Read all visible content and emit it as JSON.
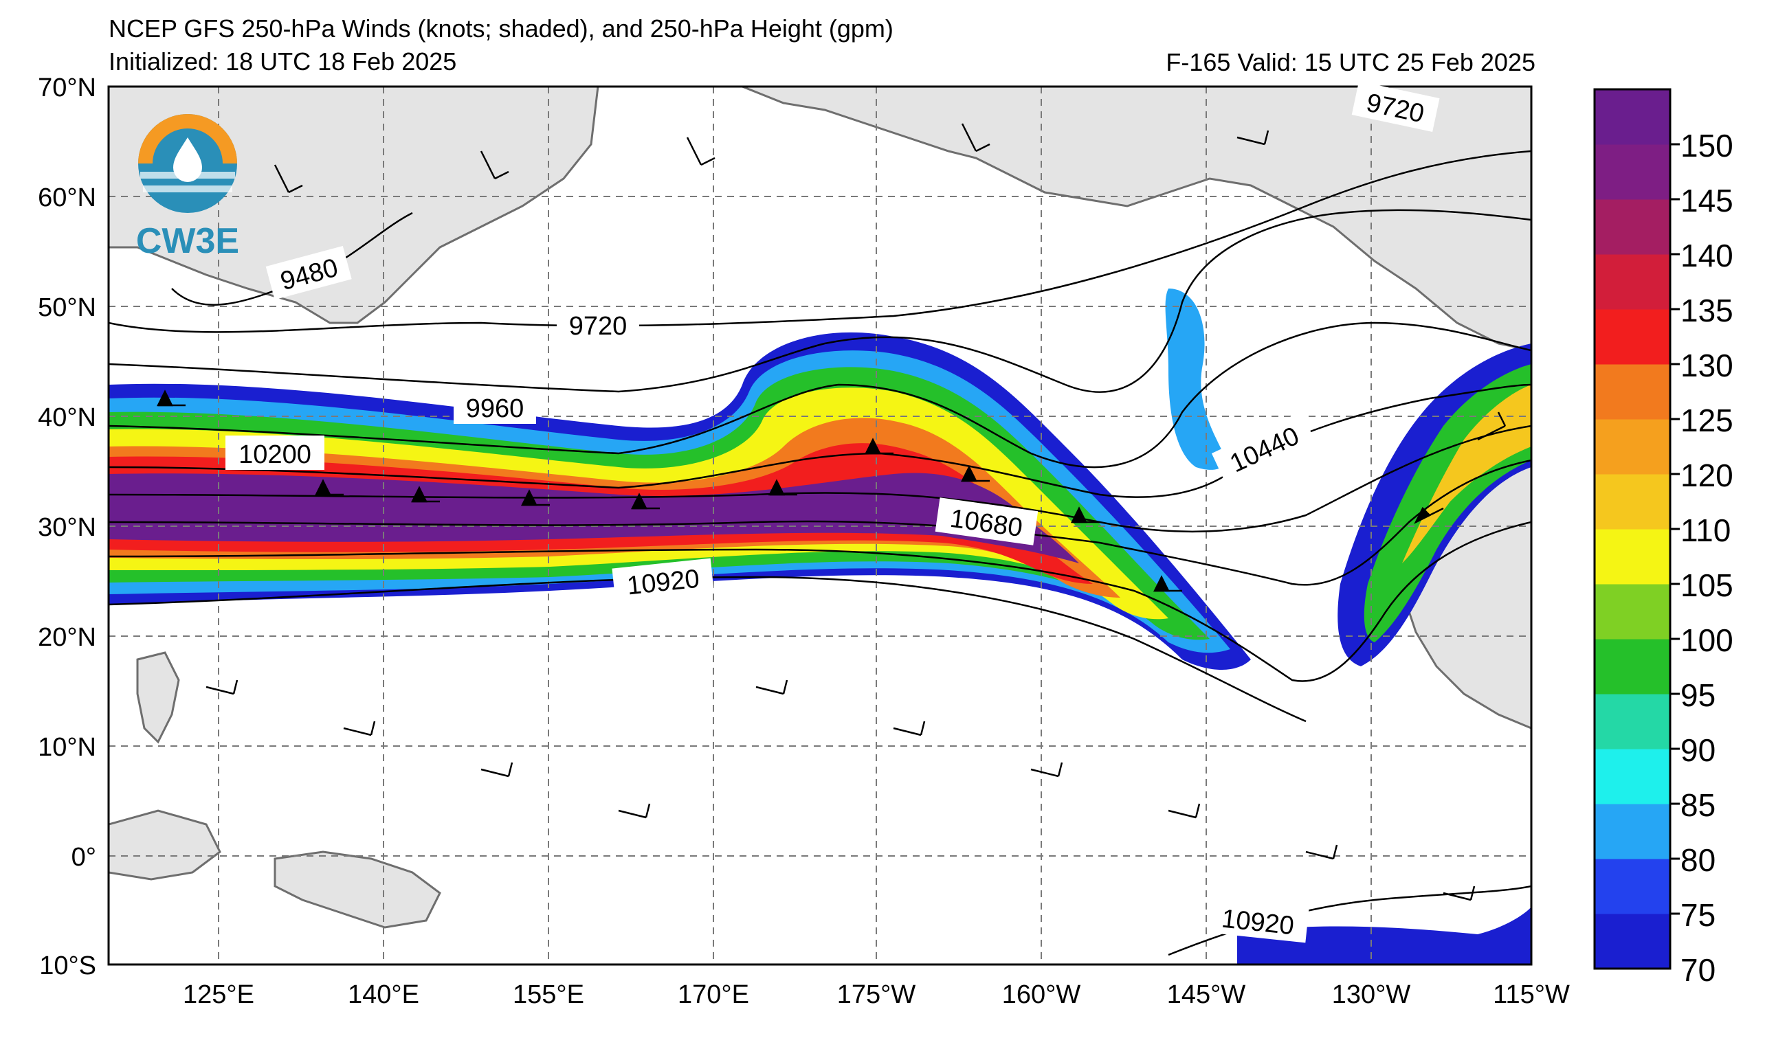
{
  "header": {
    "title": "NCEP GFS 250-hPa Winds (knots; shaded), and 250-hPa Height (gpm)",
    "initialized": "Initialized: 18 UTC 18 Feb 2025",
    "valid": "F-165  Valid: 15 UTC 25 Feb 2025"
  },
  "logo": {
    "text": "CW3E"
  },
  "axes": {
    "lat_labels": [
      "70°N",
      "60°N",
      "50°N",
      "40°N",
      "30°N",
      "20°N",
      "10°N",
      "0°",
      "10°S"
    ],
    "lon_labels": [
      "125°E",
      "140°E",
      "155°E",
      "170°E",
      "175°W",
      "160°W",
      "145°W",
      "130°W",
      "115°W"
    ]
  },
  "contour_labels": [
    {
      "text": "9480",
      "id": "c9480"
    },
    {
      "text": "9720",
      "id": "c9720a"
    },
    {
      "text": "9720",
      "id": "c9720b"
    },
    {
      "text": "9960",
      "id": "c9960"
    },
    {
      "text": "10200",
      "id": "c10200"
    },
    {
      "text": "10440",
      "id": "c10440"
    },
    {
      "text": "10680",
      "id": "c10680"
    },
    {
      "text": "10920",
      "id": "c10920a"
    },
    {
      "text": "10920",
      "id": "c10920b"
    }
  ],
  "colorbar": {
    "levels": [
      70,
      75,
      80,
      85,
      90,
      95,
      100,
      105,
      110,
      120,
      125,
      130,
      135,
      140,
      145,
      150
    ],
    "tick_labels": [
      "150",
      "145",
      "140",
      "135",
      "130",
      "125",
      "120",
      "110",
      "105",
      "100",
      "95",
      "90",
      "85",
      "80",
      "75",
      "70"
    ],
    "colors": [
      "#1a1fd0",
      "#2342ee",
      "#26a6f5",
      "#1ef0ec",
      "#24d8a6",
      "#25c02a",
      "#7fd024",
      "#f5f514",
      "#f5c71e",
      "#f5a01e",
      "#f27a1e",
      "#f21e1e",
      "#d21e3a",
      "#a41e62",
      "#7e1e84",
      "#6a1e8e"
    ]
  }
}
